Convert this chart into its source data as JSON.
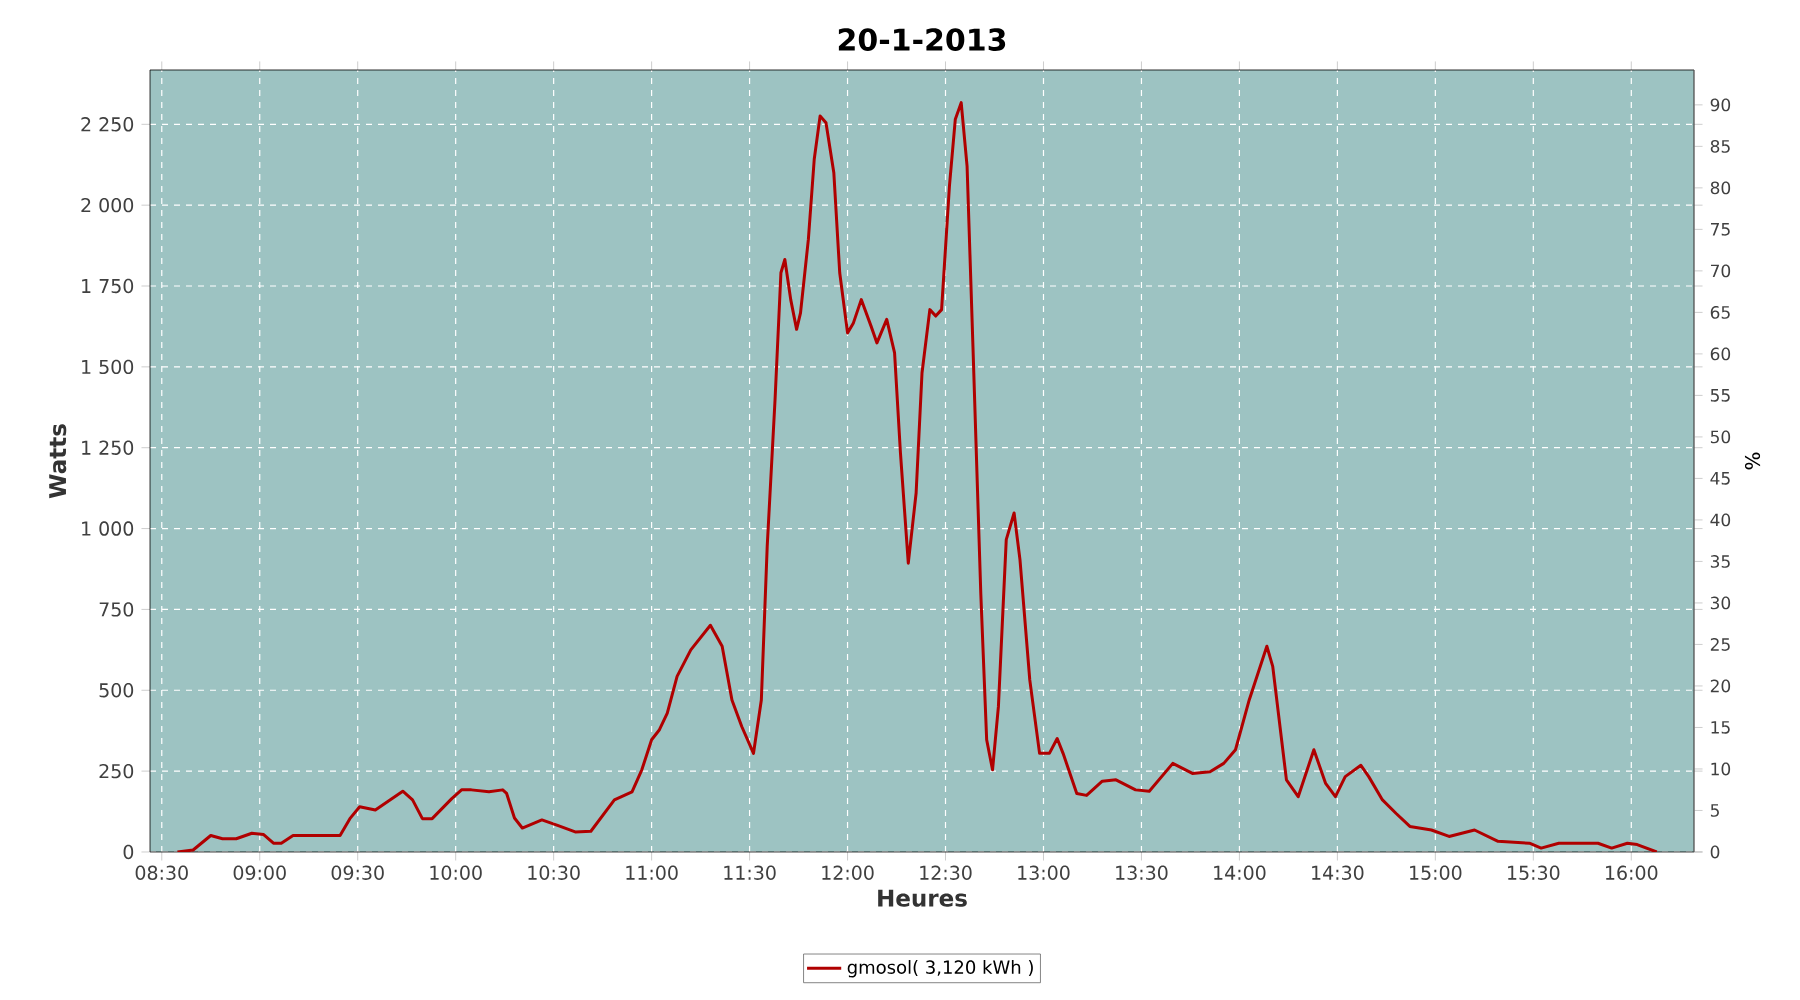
{
  "chart_data": {
    "type": "line",
    "title": "20-1-2013",
    "xlabel": "Heures",
    "ylabel": "Watts",
    "y2label": "%",
    "x": [
      8.58,
      8.66,
      8.75,
      8.81,
      8.88,
      8.96,
      9.02,
      9.07,
      9.11,
      9.17,
      9.41,
      9.46,
      9.51,
      9.59,
      9.73,
      9.78,
      9.83,
      9.88,
      9.98,
      10.03,
      10.08,
      10.17,
      10.24,
      10.26,
      10.3,
      10.34,
      10.44,
      10.52,
      10.61,
      10.69,
      10.81,
      10.9,
      10.95,
      11.0,
      11.04,
      11.08,
      11.13,
      11.2,
      11.3,
      11.36,
      11.41,
      11.46,
      11.52,
      11.56,
      11.59,
      11.63,
      11.66,
      11.68,
      11.71,
      11.74,
      11.76,
      11.8,
      11.83,
      11.86,
      11.89,
      11.93,
      11.96,
      12.0,
      12.03,
      12.07,
      12.12,
      12.15,
      12.2,
      12.24,
      12.27,
      12.31,
      12.35,
      12.38,
      12.42,
      12.45,
      12.48,
      12.52,
      12.55,
      12.58,
      12.61,
      12.64,
      12.68,
      12.71,
      12.74,
      12.77,
      12.81,
      12.85,
      12.88,
      12.93,
      12.98,
      13.03,
      13.07,
      13.1,
      13.17,
      13.22,
      13.3,
      13.37,
      13.47,
      13.54,
      13.66,
      13.76,
      13.85,
      13.92,
      13.98,
      14.05,
      14.14,
      14.17,
      14.24,
      14.3,
      14.38,
      14.44,
      14.49,
      14.54,
      14.62,
      14.66,
      14.73,
      14.8,
      14.87,
      14.98,
      15.07,
      15.2,
      15.32,
      15.48,
      15.54,
      15.63,
      15.83,
      15.9,
      15.98,
      16.03,
      16.13
    ],
    "series": [
      {
        "name": "gmosol( 3,120 kWh )",
        "color": "#b00000",
        "values": [
          0,
          6,
          51,
          41,
          41,
          58,
          54,
          27,
          27,
          51,
          51,
          103,
          140,
          130,
          188,
          161,
          103,
          103,
          165,
          192,
          192,
          186,
          192,
          181,
          105,
          74,
          99,
          82,
          62,
          64,
          161,
          186,
          254,
          347,
          378,
          429,
          543,
          625,
          701,
          636,
          470,
          388,
          305,
          470,
          945,
          1399,
          1791,
          1832,
          1708,
          1616,
          1667,
          1894,
          2142,
          2276,
          2255,
          2100,
          1791,
          1605,
          1636,
          1708,
          1626,
          1574,
          1647,
          1543,
          1234,
          893,
          1110,
          1481,
          1677,
          1657,
          1677,
          2059,
          2266,
          2317,
          2121,
          1564,
          800,
          347,
          254,
          450,
          966,
          1048,
          904,
          532,
          305,
          305,
          351,
          305,
          181,
          175,
          219,
          223,
          192,
          188,
          274,
          243,
          248,
          274,
          316,
          470,
          636,
          574,
          223,
          171,
          316,
          212,
          171,
          233,
          268,
          233,
          161,
          119,
          79,
          68,
          48,
          68,
          33,
          27,
          12,
          27,
          27,
          12,
          27,
          23,
          0
        ]
      }
    ],
    "xlim": [
      8.44,
      16.32
    ],
    "xticks": [
      {
        "value": 8.5,
        "label": "08:30"
      },
      {
        "value": 9,
        "label": "09:00"
      },
      {
        "value": 9.5,
        "label": "09:30"
      },
      {
        "value": 10,
        "label": "10:00"
      },
      {
        "value": 10.5,
        "label": "10:30"
      },
      {
        "value": 11,
        "label": "11:00"
      },
      {
        "value": 11.5,
        "label": "11:30"
      },
      {
        "value": 12,
        "label": "12:00"
      },
      {
        "value": 12.5,
        "label": "12:30"
      },
      {
        "value": 13,
        "label": "13:00"
      },
      {
        "value": 13.5,
        "label": "13:30"
      },
      {
        "value": 14,
        "label": "14:00"
      },
      {
        "value": 14.5,
        "label": "14:30"
      },
      {
        "value": 15,
        "label": "15:00"
      },
      {
        "value": 15.5,
        "label": "15:30"
      },
      {
        "value": 16,
        "label": "16:00"
      }
    ],
    "ylim": [
      0,
      2418
    ],
    "yticks": [
      0,
      250,
      500,
      750,
      {
        "value": 1000,
        "label": "1 000"
      },
      {
        "value": 1250,
        "label": "1 250"
      },
      {
        "value": 1500,
        "label": "1 500"
      },
      {
        "value": 1750,
        "label": "1 750"
      },
      {
        "value": 2000,
        "label": "2 000"
      },
      {
        "value": 2250,
        "label": "2 250"
      }
    ],
    "y2lim": [
      0,
      94.2
    ],
    "y2ticks": [
      0,
      5,
      10,
      15,
      20,
      25,
      30,
      35,
      40,
      45,
      50,
      55,
      60,
      65,
      70,
      75,
      80,
      85,
      90
    ],
    "grid": true,
    "legend": "bottom"
  }
}
